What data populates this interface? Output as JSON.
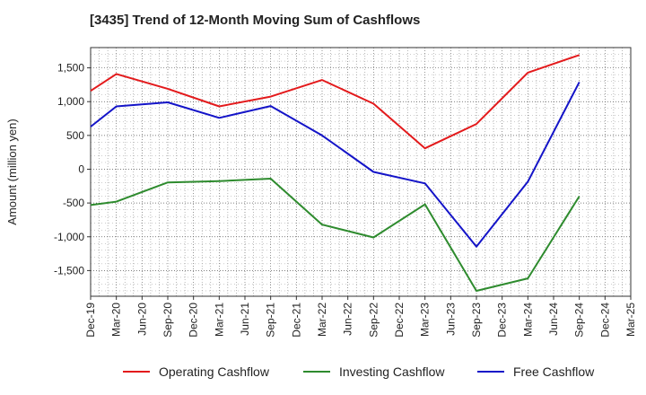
{
  "chart_data": {
    "type": "line",
    "title": "[3435]  Trend of 12-Month Moving Sum of Cashflows",
    "xlabel": "",
    "ylabel": "Amount (million yen)",
    "x": [
      "Dec-19",
      "Mar-20",
      "Jun-20",
      "Sep-20",
      "Dec-20",
      "Mar-21",
      "Jun-21",
      "Sep-21",
      "Dec-21",
      "Mar-22",
      "Jun-22",
      "Sep-22",
      "Dec-22",
      "Mar-23",
      "Jun-23",
      "Sep-23",
      "Dec-23",
      "Mar-24",
      "Jun-24",
      "Sep-24",
      "Dec-24",
      "Mar-25"
    ],
    "y_ticks": [
      {
        "value": 1500,
        "label": "1,500"
      },
      {
        "value": 1000,
        "label": "1,000"
      },
      {
        "value": 500,
        "label": "500"
      },
      {
        "value": 0,
        "label": "0"
      },
      {
        "value": -500,
        "label": "-500"
      },
      {
        "value": -1000,
        "label": "-1,000"
      },
      {
        "value": -1500,
        "label": "-1,500"
      }
    ],
    "ylim": [
      -1880,
      1800
    ],
    "grid": true,
    "legend_position": "bottom",
    "series": [
      {
        "name": "Operating Cashflow",
        "color": "#e31a1c",
        "values": [
          1160,
          1410,
          null,
          1190,
          null,
          930,
          null,
          1075,
          null,
          1320,
          null,
          970,
          null,
          310,
          null,
          670,
          null,
          1430,
          null,
          1690,
          null,
          null
        ]
      },
      {
        "name": "Investing Cashflow",
        "color": "#2e8b2e",
        "values": [
          -530,
          -480,
          null,
          -195,
          null,
          -175,
          null,
          -140,
          null,
          -820,
          null,
          -1010,
          null,
          -520,
          null,
          -1800,
          null,
          -1615,
          null,
          -400,
          null,
          null
        ]
      },
      {
        "name": "Free Cashflow",
        "color": "#1414c8",
        "values": [
          630,
          930,
          null,
          990,
          null,
          760,
          null,
          935,
          null,
          500,
          null,
          -40,
          null,
          -210,
          null,
          -1145,
          null,
          -185,
          null,
          1290,
          null,
          null
        ]
      }
    ]
  }
}
